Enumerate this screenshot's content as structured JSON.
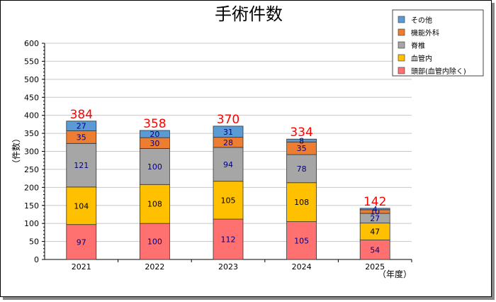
{
  "chart_data": {
    "type": "bar",
    "stacked": true,
    "title": "手術件数",
    "ylabel": "（件数）",
    "xlabel": "（年度）",
    "ylim": [
      0,
      600
    ],
    "ytick_step": 50,
    "categories": [
      "2021",
      "2022",
      "2023",
      "2024",
      "2025"
    ],
    "series": [
      {
        "name": "頭部(血管内除く)",
        "color": "#ff7070",
        "values": [
          97,
          100,
          112,
          105,
          54
        ]
      },
      {
        "name": "血管内",
        "color": "#ffc000",
        "values": [
          104,
          108,
          105,
          108,
          47
        ]
      },
      {
        "name": "脊椎",
        "color": "#a6a6a6",
        "values": [
          121,
          100,
          94,
          78,
          27
        ]
      },
      {
        "name": "機能外科",
        "color": "#ed7d31",
        "values": [
          35,
          30,
          28,
          35,
          10
        ]
      },
      {
        "name": "その他",
        "color": "#5b9bd5",
        "values": [
          27,
          20,
          31,
          8,
          4
        ]
      }
    ],
    "totals": [
      384,
      358,
      370,
      334,
      142
    ],
    "legend_position": "top-right",
    "grid": true
  }
}
